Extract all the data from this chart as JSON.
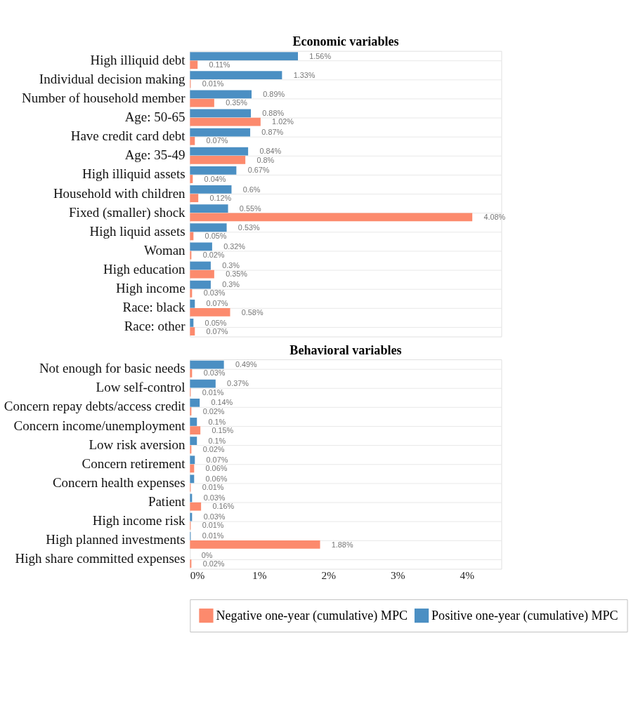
{
  "chart_data": [
    {
      "type": "bar",
      "orientation": "horizontal",
      "title": "Economic variables",
      "categories": [
        "High illiquid debt",
        "Individual decision making",
        "Number of household member",
        "Age: 50-65",
        "Have credit card debt",
        "Age: 35-49",
        "High illiquid assets",
        "Household with children",
        "Fixed (smaller) shock",
        "High liquid assets",
        "Woman",
        "High education",
        "High income",
        "Race: black",
        "Race: other"
      ],
      "series": [
        {
          "color": "#fc8a6d",
          "values": [
            0.11,
            0.01,
            0.35,
            1.02,
            0.07,
            0.8,
            0.04,
            0.12,
            4.08,
            0.05,
            0.02,
            0.35,
            0.03,
            0.58,
            0.07
          ],
          "value_labels": [
            "0.11%",
            "0.01%",
            "0.35%",
            "1.02%",
            "0.07%",
            "0.8%",
            "0.04%",
            "0.12%",
            "4.08%",
            "0.05%",
            "0.02%",
            "0.35%",
            "0.03%",
            "0.58%",
            "0.07%"
          ]
        },
        {
          "color": "#4b8fc3",
          "values": [
            1.56,
            1.33,
            0.89,
            0.88,
            0.87,
            0.84,
            0.67,
            0.6,
            0.55,
            0.53,
            0.32,
            0.3,
            0.3,
            0.07,
            0.05
          ],
          "value_labels": [
            "1.56%",
            "1.33%",
            "0.89%",
            "0.88%",
            "0.87%",
            "0.84%",
            "0.67%",
            "0.6%",
            "0.55%",
            "0.53%",
            "0.32%",
            "0.3%",
            "0.3%",
            "0.07%",
            "0.05%"
          ]
        }
      ],
      "xlim": [
        0,
        4.5
      ],
      "tick_labels": "y",
      "grid": "y"
    },
    {
      "type": "bar",
      "orientation": "horizontal",
      "title": "Behavioral variables",
      "categories": [
        "Not enough for basic needs",
        "Low self-control",
        "Concern repay debts/access credit",
        "Concern income/unemployment",
        "Low risk aversion",
        "Concern retirement",
        "Concern health expenses",
        "Patient",
        "High income risk",
        "High planned investments",
        "High share committed expenses"
      ],
      "series": [
        {
          "name": "Negative one-year (cumulative) MPC",
          "color": "#fc8a6d",
          "values": [
            0.03,
            0.01,
            0.02,
            0.15,
            0.02,
            0.06,
            0.01,
            0.16,
            0.01,
            1.88,
            0.02
          ],
          "value_labels": [
            "0.03%",
            "0.01%",
            "0.02%",
            "0.15%",
            "0.02%",
            "0.06%",
            "0.01%",
            "0.16%",
            "0.01%",
            "1.88%",
            "0.02%"
          ]
        },
        {
          "name": "Positive one-year (cumulative) MPC",
          "color": "#4b8fc3",
          "values": [
            0.49,
            0.37,
            0.14,
            0.1,
            0.1,
            0.07,
            0.06,
            0.03,
            0.03,
            0.01,
            0
          ],
          "value_labels": [
            "0.49%",
            "0.37%",
            "0.14%",
            "0.1%",
            "0.1%",
            "0.07%",
            "0.06%",
            "0.03%",
            "0.03%",
            "0.01%",
            "0%"
          ]
        }
      ],
      "xlim": [
        0,
        4.5
      ],
      "xticks": [
        {
          "value": 0,
          "label": "0%"
        },
        {
          "value": 1,
          "label": "1%"
        },
        {
          "value": 2,
          "label": "2%"
        },
        {
          "value": 3,
          "label": "3%"
        },
        {
          "value": 4,
          "label": "4%"
        }
      ],
      "grid": "y",
      "legend": "bottom"
    }
  ]
}
